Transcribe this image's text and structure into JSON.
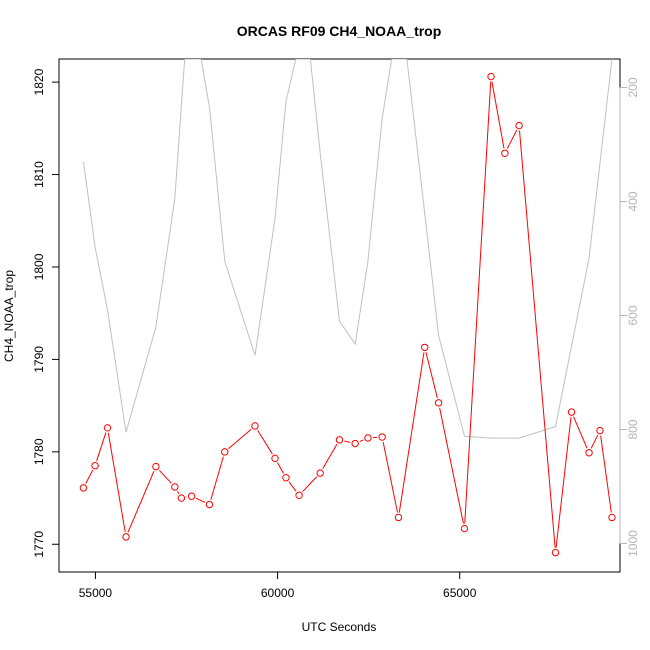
{
  "chart_data": {
    "type": "line",
    "title": "ORCAS RF09 CH4_NOAA_trop",
    "xlabel": "UTC Seconds",
    "ylabel": "CH4_NOAA_trop",
    "xlim": [
      54000,
      69400
    ],
    "ylim": [
      1767.0,
      1822.5
    ],
    "x_ticks": [
      55000,
      60000,
      65000
    ],
    "x_tick_labels": [
      "55000",
      "60000",
      "65000"
    ],
    "y_ticks": [
      1770,
      1780,
      1790,
      1800,
      1810,
      1820
    ],
    "y_tick_labels": [
      "1770",
      "1780",
      "1790",
      "1800",
      "1810",
      "1820"
    ],
    "y2lim": [
      1050,
      150
    ],
    "y2_ticks": [
      200,
      400,
      600,
      800,
      1000
    ],
    "y2_tick_labels": [
      "200",
      "400",
      "600",
      "800",
      "1000"
    ],
    "series": [
      {
        "name": "",
        "axis": "left",
        "color": "#ff0000",
        "markers": "open-circle",
        "points": [
          [
            54670,
            1776.1
          ],
          [
            54990,
            1778.5
          ],
          [
            55330,
            1782.6
          ],
          [
            55840,
            1770.8
          ],
          [
            56660,
            1778.4
          ],
          [
            57180,
            1776.2
          ],
          [
            57360,
            1775.0
          ],
          [
            57640,
            1775.2
          ],
          [
            58130,
            1774.3
          ],
          [
            58550,
            1780.0
          ],
          [
            59380,
            1782.8
          ],
          [
            59930,
            1779.3
          ],
          [
            60230,
            1777.2
          ],
          [
            60590,
            1775.3
          ],
          [
            61170,
            1777.7
          ],
          [
            61700,
            1781.3
          ],
          [
            62130,
            1780.9
          ],
          [
            62480,
            1781.5
          ],
          [
            62870,
            1781.6
          ],
          [
            63320,
            1772.9
          ],
          [
            64040,
            1791.3
          ],
          [
            64420,
            1785.3
          ],
          [
            65130,
            1771.7
          ],
          [
            65860,
            1820.6
          ],
          [
            66240,
            1812.3
          ],
          [
            66630,
            1815.3
          ],
          [
            67630,
            1769.1
          ],
          [
            68070,
            1784.3
          ],
          [
            68550,
            1779.9
          ],
          [
            68850,
            1782.3
          ],
          [
            69180,
            1772.9
          ]
        ]
      },
      {
        "name": "",
        "axis": "right",
        "color": "#c0c0c0",
        "markers": "none",
        "points": [
          [
            54670,
            330
          ],
          [
            54990,
            480
          ],
          [
            55330,
            590
          ],
          [
            55840,
            805
          ],
          [
            56660,
            620
          ],
          [
            57180,
            395
          ],
          [
            57450,
            150
          ],
          [
            57900,
            150
          ],
          [
            58130,
            235
          ],
          [
            58550,
            505
          ],
          [
            59380,
            670
          ],
          [
            59930,
            430
          ],
          [
            60230,
            225
          ],
          [
            60500,
            150
          ],
          [
            60900,
            150
          ],
          [
            61170,
            315
          ],
          [
            61700,
            610
          ],
          [
            62130,
            650
          ],
          [
            62480,
            505
          ],
          [
            62870,
            255
          ],
          [
            63130,
            150
          ],
          [
            63550,
            150
          ],
          [
            64040,
            420
          ],
          [
            64420,
            635
          ],
          [
            65130,
            812
          ],
          [
            65860,
            815
          ],
          [
            66630,
            815
          ],
          [
            67630,
            795
          ],
          [
            68550,
            500
          ],
          [
            69180,
            150
          ]
        ]
      }
    ]
  }
}
